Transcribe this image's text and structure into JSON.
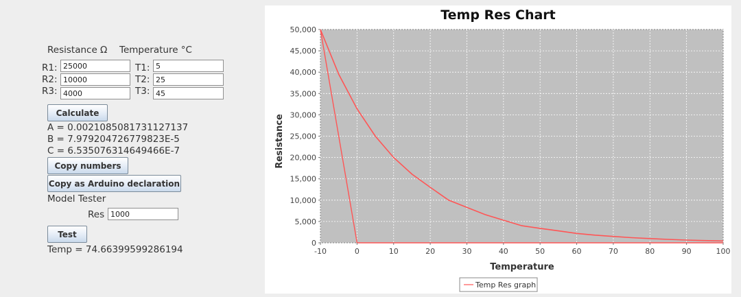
{
  "form": {
    "resistance_header": "Resistance Ω",
    "temperature_header": "Temperature °C",
    "r1_label": "R1:",
    "r2_label": "R2:",
    "r3_label": "R3:",
    "t1_label": "T1:",
    "t2_label": "T2:",
    "t3_label": "T3:",
    "r1_value": "25000",
    "r2_value": "10000",
    "r3_value": "4000",
    "t1_value": "5",
    "t2_value": "25",
    "t3_value": "45",
    "calculate_label": "Calculate",
    "result_a": "A = 0.0021085081731127137",
    "result_b": "B = 7.979204726779823E-5",
    "result_c": "C = 6.535076314649466E-7",
    "copy_numbers_label": "Copy numbers",
    "copy_arduino_label": "Copy as Arduino declaration"
  },
  "tester": {
    "title": "Model Tester",
    "res_label": "Res",
    "res_value": "1000",
    "test_label": "Test",
    "result": "Temp = 74.66399599286194"
  },
  "colors": {
    "plot_background": "#c0c0c0",
    "gridline": "#ffffff",
    "series": "#ff5555",
    "button_gradient_top": "#ffffff",
    "button_gradient_bottom": "#c9d9ec"
  },
  "chart_data": {
    "type": "line",
    "title": "Temp Res Chart",
    "xlabel": "Temperature",
    "ylabel": "Resistance",
    "xlim": [
      -10,
      100
    ],
    "ylim": [
      0,
      50000
    ],
    "x_ticks": [
      -10,
      0,
      10,
      20,
      30,
      40,
      50,
      60,
      70,
      80,
      90,
      100
    ],
    "y_ticks": [
      0,
      5000,
      10000,
      15000,
      20000,
      25000,
      30000,
      35000,
      40000,
      45000,
      50000
    ],
    "y_tick_labels": [
      "0",
      "5,000",
      "10,000",
      "15,000",
      "20,000",
      "25,000",
      "30,000",
      "35,000",
      "40,000",
      "45,000",
      "50,000"
    ],
    "grid": true,
    "legend_position": "bottom-center",
    "series": [
      {
        "name": "Temp Res graph",
        "points": [
          [
            -10,
            50000
          ],
          [
            -5,
            39500
          ],
          [
            0,
            31400
          ],
          [
            5,
            25000
          ],
          [
            10,
            20000
          ],
          [
            15,
            16100
          ],
          [
            20,
            13000
          ],
          [
            25,
            10000
          ],
          [
            30,
            8300
          ],
          [
            35,
            6600
          ],
          [
            40,
            5300
          ],
          [
            45,
            4000
          ],
          [
            50,
            3400
          ],
          [
            55,
            2800
          ],
          [
            60,
            2200
          ],
          [
            65,
            1800
          ],
          [
            70,
            1500
          ],
          [
            75,
            1200
          ],
          [
            80,
            1000
          ],
          [
            85,
            800
          ],
          [
            90,
            650
          ],
          [
            95,
            530
          ],
          [
            100,
            430
          ]
        ],
        "segment": [
          [
            -10,
            50000
          ],
          [
            0,
            0
          ],
          [
            100,
            0
          ]
        ]
      }
    ]
  }
}
